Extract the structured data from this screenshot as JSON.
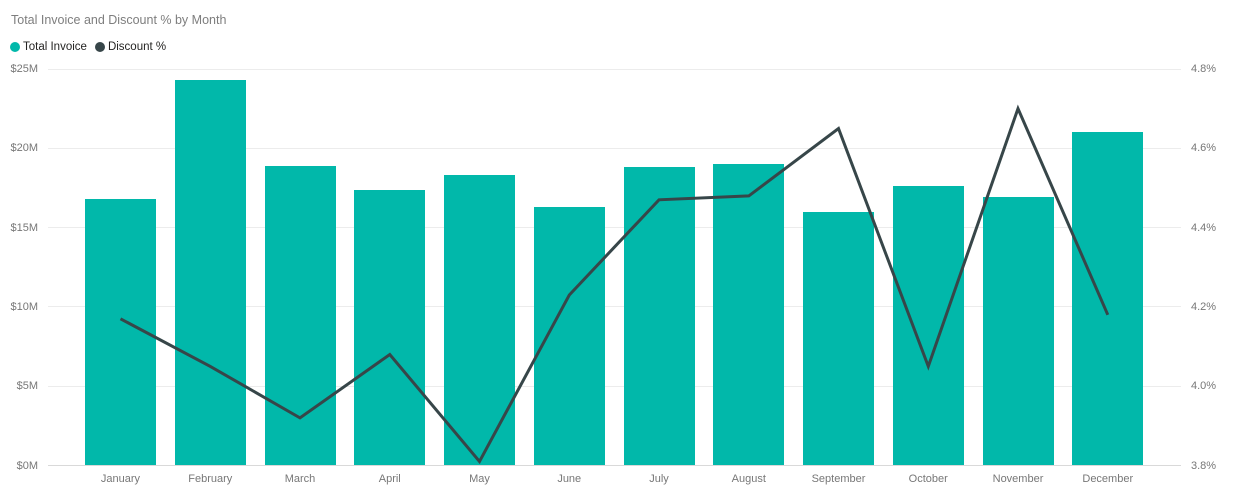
{
  "chart_data": {
    "type": "combo",
    "title": "Total Invoice and Discount % by Month",
    "categories": [
      "January",
      "February",
      "March",
      "April",
      "May",
      "June",
      "July",
      "August",
      "September",
      "October",
      "November",
      "December"
    ],
    "series": [
      {
        "name": "Total Invoice",
        "type": "bar",
        "axis": "left",
        "unit": "$M",
        "color": "#01B8AA",
        "values": [
          16.8,
          24.3,
          18.9,
          17.4,
          18.3,
          16.3,
          18.8,
          19.0,
          16.0,
          17.6,
          16.9,
          21.0
        ]
      },
      {
        "name": "Discount %",
        "type": "line",
        "axis": "right",
        "unit": "%",
        "color": "#374649",
        "values": [
          4.17,
          4.05,
          3.92,
          4.08,
          3.81,
          4.23,
          4.47,
          4.48,
          4.65,
          4.05,
          4.7,
          4.18
        ]
      }
    ],
    "left_axis": {
      "min": 0,
      "max": 25,
      "ticks": [
        "$25M",
        "$20M",
        "$15M",
        "$10M",
        "$5M",
        "$0M"
      ]
    },
    "right_axis": {
      "min": 3.8,
      "max": 4.8,
      "ticks": [
        "4.8%",
        "4.6%",
        "4.4%",
        "4.2%",
        "4.0%",
        "3.8%"
      ]
    },
    "grid": true,
    "legend": {
      "position": "top-left",
      "items": [
        {
          "label": "Total Invoice",
          "color": "#01B8AA"
        },
        {
          "label": "Discount %",
          "color": "#374649"
        }
      ]
    }
  }
}
